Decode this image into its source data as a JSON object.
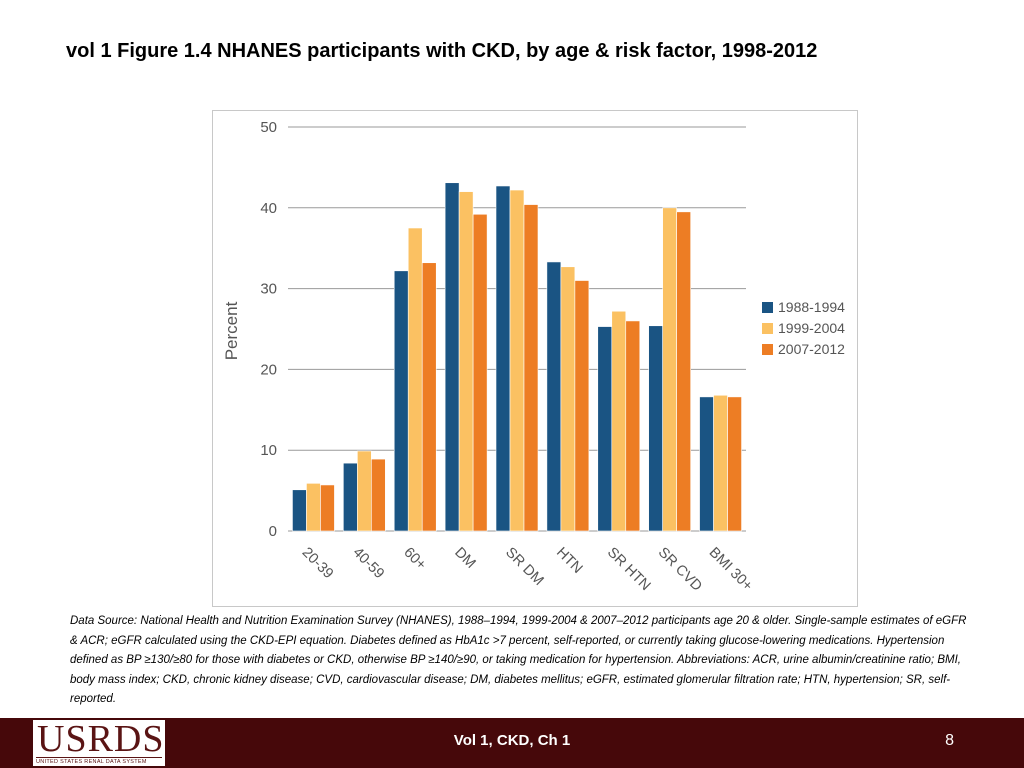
{
  "slide": {
    "title": "vol 1 Figure 1.4  NHANES participants with CKD, by age & risk factor, 1998-2012",
    "source_note": "Data Source: National Health and Nutrition Examination Survey (NHANES), 1988–1994, 1999-2004 & 2007–2012 participants age 20 & older. Single-sample estimates of eGFR & ACR; eGFR calculated using the CKD-EPI equation. Diabetes defined as HbA1c >7 percent, self-reported, or currently taking glucose-lowering medications. Hypertension defined as BP ≥130/≥80 for those with diabetes or CKD, otherwise BP ≥140/≥90, or taking medication for hypertension. Abbreviations: ACR, urine albumin/creatinine ratio; BMI, body mass index; CKD, chronic kidney disease; CVD, cardiovascular disease; DM, diabetes mellitus; eGFR, estimated glomerular filtration rate; HTN, hypertension; SR, self-reported."
  },
  "footer": {
    "logo_text": "USRDS",
    "logo_subtext": "UNITED STATES RENAL DATA SYSTEM",
    "center_text": "Vol 1, CKD, Ch 1",
    "page_number": "8",
    "background_color": "#46080a"
  },
  "chart_data": {
    "type": "bar",
    "title": "",
    "xlabel": "",
    "ylabel": "Percent",
    "ylim": [
      0,
      50
    ],
    "yticks": [
      0,
      10,
      20,
      30,
      40,
      50
    ],
    "grid": true,
    "legend_position": "right",
    "categories": [
      "20-39",
      "40-59",
      "60+",
      "DM",
      "SR DM",
      "HTN",
      "SR HTN",
      "SR CVD",
      "BMI 30+"
    ],
    "series": [
      {
        "name": "1988-1994",
        "color": "#1a5483",
        "values": [
          5.1,
          8.4,
          32.2,
          43.1,
          42.7,
          33.3,
          25.3,
          25.4,
          16.6
        ]
      },
      {
        "name": "1999-2004",
        "color": "#fbc162",
        "values": [
          5.9,
          9.9,
          37.5,
          42.0,
          42.2,
          32.7,
          27.2,
          40.0,
          16.8
        ]
      },
      {
        "name": "2007-2012",
        "color": "#ed7d24",
        "values": [
          5.7,
          8.9,
          33.2,
          39.2,
          40.4,
          31.0,
          26.0,
          39.5,
          16.6
        ]
      }
    ]
  }
}
